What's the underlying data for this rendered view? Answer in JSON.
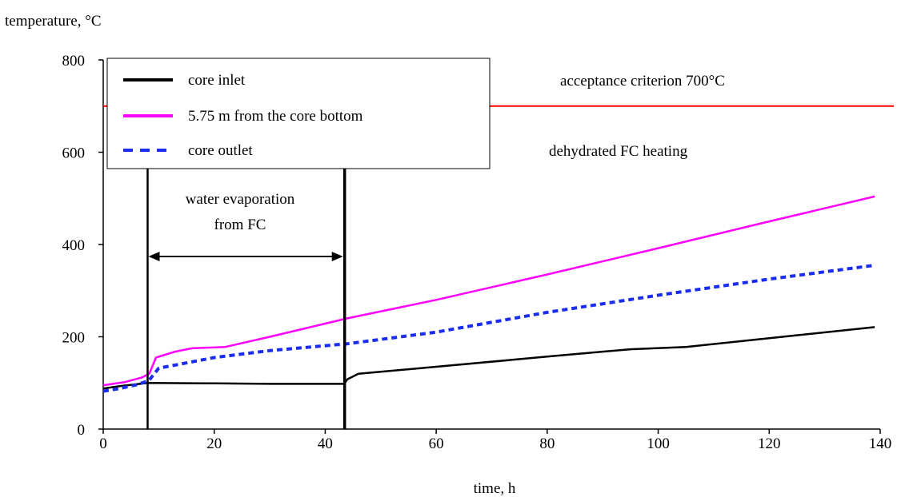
{
  "chart_data": {
    "type": "line",
    "xlabel": "time, h",
    "ylabel": "temperature, °C",
    "xlim": [
      0,
      140
    ],
    "ylim": [
      0,
      800
    ],
    "xticks": [
      0,
      20,
      40,
      60,
      80,
      100,
      120,
      140
    ],
    "yticks": [
      0,
      200,
      400,
      600,
      800
    ],
    "grid": false,
    "legend_position": "top-left",
    "series": [
      {
        "name": "core inlet",
        "color": "#000000",
        "style": "solid",
        "x": [
          0,
          3,
          8,
          20,
          30,
          43.4,
          44,
          46,
          60,
          80,
          95,
          105,
          120,
          139
        ],
        "y": [
          88,
          93,
          100,
          99,
          98,
          98,
          108,
          120,
          135,
          157,
          173,
          178,
          197,
          221
        ]
      },
      {
        "name": "5.75 m from the core bottom",
        "color": "#ff00ff",
        "style": "solid",
        "x": [
          0,
          4,
          7,
          8.3,
          9.5,
          13,
          16,
          22,
          30,
          44,
          60,
          80,
          100,
          120,
          139
        ],
        "y": [
          95,
          102,
          112,
          120,
          155,
          168,
          175,
          178,
          200,
          240,
          280,
          335,
          392,
          450,
          504
        ]
      },
      {
        "name": "core outlet",
        "color": "#1a2cf0",
        "style": "dashed",
        "x": [
          0,
          3,
          6,
          8.2,
          10,
          20,
          30,
          44,
          60,
          80,
          100,
          120,
          139
        ],
        "y": [
          82,
          88,
          96,
          105,
          132,
          155,
          170,
          185,
          210,
          253,
          290,
          325,
          355
        ]
      }
    ],
    "reference_line": {
      "label": "acceptance criterion 700°C",
      "value": 700,
      "color": "#ff0000"
    },
    "annotations": {
      "region_label_line1": "water evaporation",
      "region_label_line2": "from FC",
      "heating_label": "dehydrated FC heating",
      "region_start": 8,
      "region_end": 43.5
    }
  }
}
